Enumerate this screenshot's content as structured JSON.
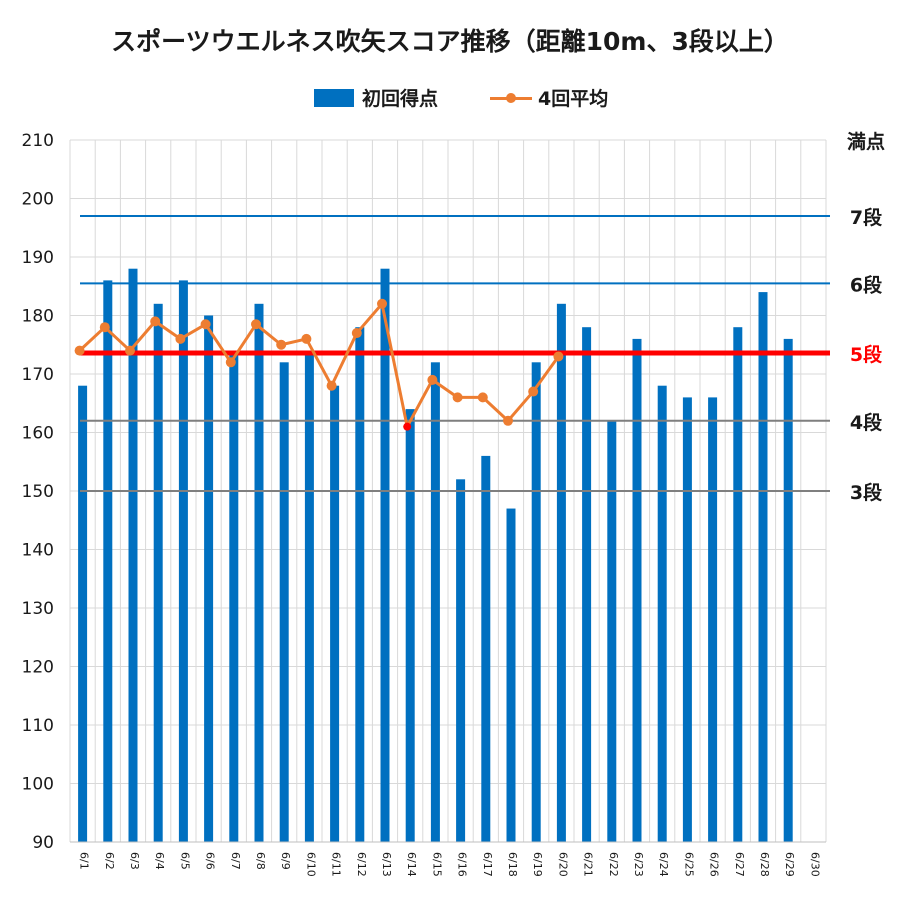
{
  "chart_data": {
    "type": "bar",
    "title": "スポーツウエルネス吹矢スコア推移（距離10m、3段以上）",
    "categories": [
      "6/1",
      "6/2",
      "6/3",
      "6/4",
      "6/5",
      "6/6",
      "6/7",
      "6/8",
      "6/9",
      "6/10",
      "6/11",
      "6/12",
      "6/13",
      "6/14",
      "6/15",
      "6/16",
      "6/17",
      "6/18",
      "6/19",
      "6/20",
      "6/21",
      "6/22",
      "6/23",
      "6/24",
      "6/25",
      "6/26",
      "6/27",
      "6/28",
      "6/29",
      "6/30"
    ],
    "ylim": [
      90,
      210
    ],
    "yticks": [
      "90",
      "100",
      "110",
      "120",
      "130",
      "140",
      "150",
      "160",
      "170",
      "180",
      "190",
      "200",
      "210"
    ],
    "grid": true,
    "legend_position": "top-center",
    "series": [
      {
        "name": "初回得点",
        "type": "bar",
        "color": "#0070C0",
        "values": [
          168,
          186,
          188,
          182,
          186,
          180,
          174,
          182,
          172,
          174,
          168,
          178,
          188,
          164,
          172,
          152,
          156,
          147,
          172,
          182,
          178,
          162,
          176,
          168,
          166,
          166,
          178,
          184,
          176,
          null
        ]
      },
      {
        "name": "4回平均",
        "type": "line",
        "color": "#ED7D31",
        "values": [
          174,
          178,
          174,
          179,
          176,
          178.5,
          172,
          178.5,
          175,
          176,
          168,
          177,
          182,
          161,
          169,
          166,
          166,
          162,
          167,
          173,
          null,
          null,
          null,
          null,
          null,
          null,
          null,
          null,
          null,
          null
        ],
        "highlight": {
          "index": 13,
          "color": "#FF0000"
        }
      }
    ],
    "reference_lines": [
      {
        "label": "満点",
        "value": 210,
        "color": "#1a1a1a",
        "draw_line": false
      },
      {
        "label": "7段",
        "value": 197,
        "color": "#0070C0",
        "label_color": "#1a1a1a",
        "draw_line": true,
        "width": 2
      },
      {
        "label": "6段",
        "value": 185.5,
        "color": "#0070C0",
        "label_color": "#1a1a1a",
        "draw_line": true,
        "width": 2
      },
      {
        "label": "5段",
        "value": 173.6,
        "color": "#FF0000",
        "label_color": "#FF0000",
        "draw_line": true,
        "width": 5
      },
      {
        "label": "4段",
        "value": 162,
        "color": "#7F7F7F",
        "label_color": "#1a1a1a",
        "draw_line": true,
        "width": 2
      },
      {
        "label": "3段",
        "value": 150,
        "color": "#7F7F7F",
        "label_color": "#1a1a1a",
        "draw_line": true,
        "width": 2
      }
    ]
  }
}
